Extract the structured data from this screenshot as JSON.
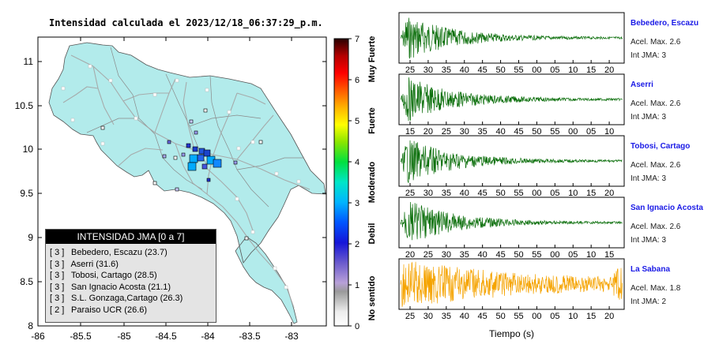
{
  "map": {
    "title": "Intensidad calculada el 2023/12/18_06:37:29_p.m.",
    "lat_ticks": [
      "11",
      "10.5",
      "10",
      "9.5",
      "9",
      "8.5",
      "8"
    ],
    "lon_ticks": [
      "-86",
      "-85.5",
      "-85",
      "-84.5",
      "-84",
      "-83.5",
      "-83"
    ],
    "land_color": "#b2ebeb",
    "sea_color": "#ffffff"
  },
  "colorbar": {
    "ticks": [
      "7",
      "6",
      "5",
      "4",
      "3",
      "2",
      "1",
      "0"
    ],
    "labels": [
      "Muy Fuerte",
      "Fuerte",
      "Moderado",
      "Debil",
      "No sentido"
    ]
  },
  "legend": {
    "title": "INTENSIDAD JMA [0 a 7]",
    "items": [
      {
        "level": "[ 3 ]",
        "name": "Bebedero, Escazu (23.7)"
      },
      {
        "level": "[ 3 ]",
        "name": "Aserri (31.6)"
      },
      {
        "level": "[ 3 ]",
        "name": "Tobosi, Cartago (28.5)"
      },
      {
        "level": "[ 3 ]",
        "name": "San Ignacio Acosta (21.1)"
      },
      {
        "level": "[ 3 ]",
        "name": "S.L. Gonzaga,Cartago (26.3)"
      },
      {
        "level": "[ 2 ]",
        "name": "Paraiso UCR (26.6)"
      }
    ]
  },
  "waveforms": {
    "xlabel": "Tiempo (s)",
    "stations": [
      {
        "name": "Bebedero, Escazu",
        "acel": "Acel. Max. 2.6",
        "int": "Int JMA: 3",
        "color": "#0a6e0a",
        "ticks": [
          "25",
          "30",
          "35",
          "40",
          "45",
          "50",
          "55",
          "00",
          "05",
          "10",
          "15",
          "20"
        ]
      },
      {
        "name": "Aserri",
        "acel": "Acel. Max. 2.6",
        "int": "Int JMA: 3",
        "color": "#0a6e0a",
        "ticks": [
          "15",
          "20",
          "25",
          "30",
          "35",
          "40",
          "45",
          "50",
          "55",
          "00",
          "05",
          "10"
        ]
      },
      {
        "name": "Tobosi, Cartago",
        "acel": "Acel. Max. 2.6",
        "int": "Int JMA: 3",
        "color": "#0a6e0a",
        "ticks": [
          "25",
          "30",
          "35",
          "40",
          "45",
          "50",
          "55",
          "00",
          "05",
          "10",
          "15",
          "20"
        ]
      },
      {
        "name": "San Ignacio Acosta",
        "acel": "Acel. Max. 2.6",
        "int": "Int JMA: 3",
        "color": "#0a6e0a",
        "ticks": [
          "20",
          "25",
          "30",
          "35",
          "40",
          "45",
          "50",
          "55",
          "00",
          "05",
          "10",
          "15"
        ]
      },
      {
        "name": "La Sabana",
        "acel": "Acel. Max. 1.8",
        "int": "Int JMA: 2",
        "color": "#f5a300",
        "ticks": [
          "25",
          "30",
          "35",
          "40",
          "45",
          "50",
          "55",
          "00",
          "05",
          "10",
          "15",
          "20"
        ]
      }
    ]
  }
}
